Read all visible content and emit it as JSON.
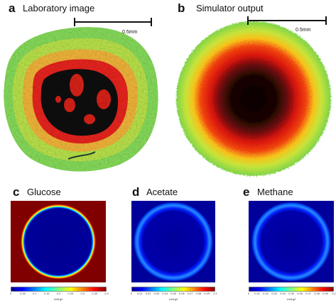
{
  "panels": {
    "a": {
      "letter": "a",
      "title": "Laboratory image",
      "scale": "0.5mm"
    },
    "b": {
      "letter": "b",
      "title": "Simulator output",
      "scale": "0.5mm"
    },
    "c": {
      "letter": "c",
      "title": "Glucose",
      "unit": "Unit:g/l",
      "ticks": [
        "0",
        "0.05",
        "0.1",
        "0.15",
        "0.2",
        "0.25",
        "0.3",
        "0.35",
        "0.4"
      ]
    },
    "d": {
      "letter": "d",
      "title": "Acetate",
      "unit": "Unit:g/l",
      "ticks": [
        "0",
        "0.01",
        "0.02",
        "0.03",
        "0.04",
        "0.05",
        "0.06",
        "0.07",
        "0.08",
        "0.09",
        "0.1"
      ]
    },
    "e": {
      "letter": "e",
      "title": "Methane",
      "unit": "Unit:g/l",
      "ticks": [
        "0",
        "0.01",
        "0.02",
        "0.03",
        "0.04",
        "0.05",
        "0.06",
        "0.07",
        "0.08",
        "0.09",
        "0.1"
      ]
    }
  },
  "colors": {
    "background": "#ffffff",
    "jet_dark_blue": "#00008f",
    "jet_dark_red": "#800000",
    "lab_green": "#7ed957",
    "lab_red": "#e8231d",
    "lab_black": "#0a0a0a"
  }
}
